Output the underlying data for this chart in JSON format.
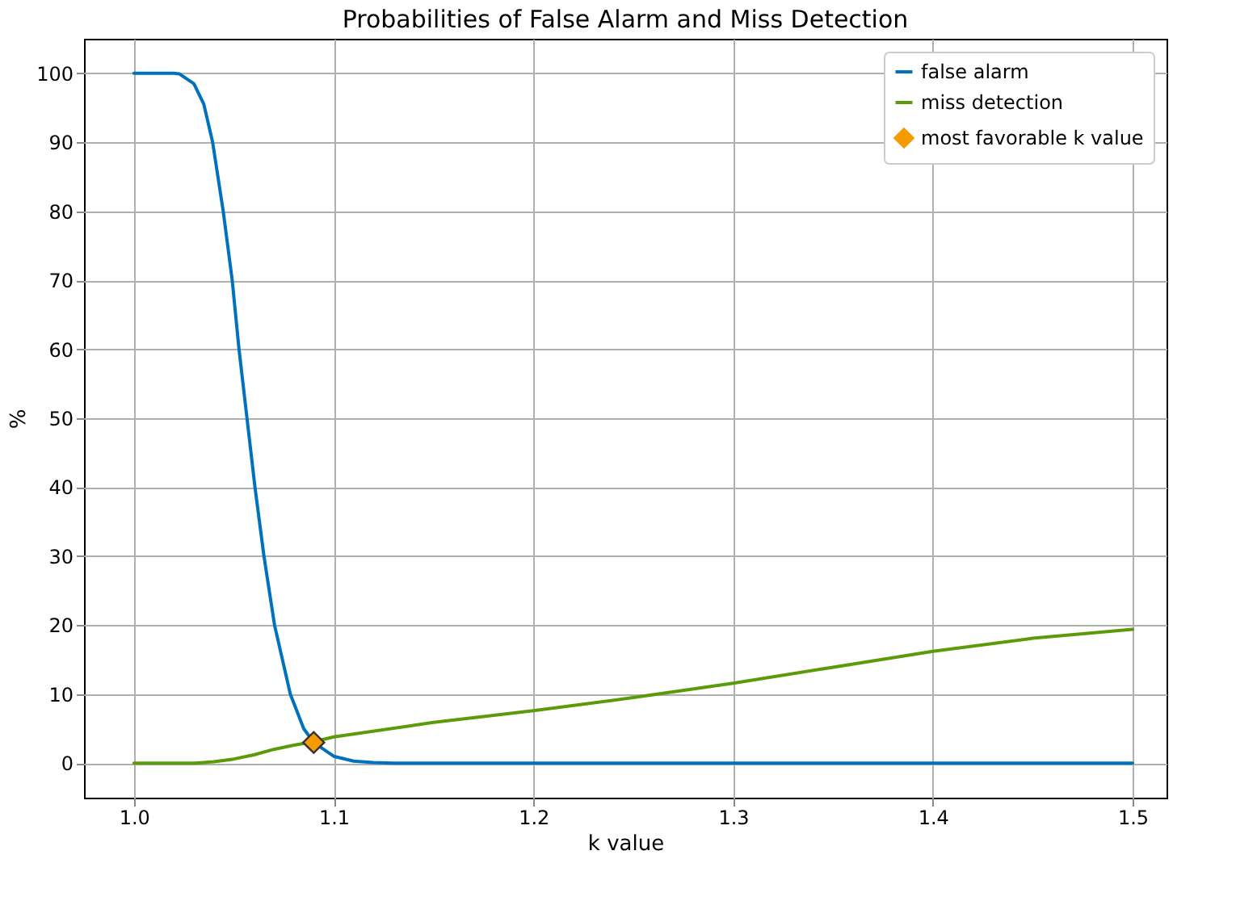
{
  "chart_data": {
    "type": "line",
    "title": "Probabilities of False Alarm and Miss Detection",
    "xlabel": "k value",
    "ylabel": "%",
    "xlim": [
      0.975,
      1.517
    ],
    "ylim": [
      -5,
      105
    ],
    "xticks": [
      {
        "value": 1.0,
        "label": "1.0"
      },
      1.1,
      1.2,
      1.3,
      1.4,
      1.5
    ],
    "yticks": [
      0,
      10,
      20,
      30,
      40,
      50,
      60,
      70,
      80,
      90,
      100
    ],
    "grid": true,
    "legend": "top right",
    "line_style": "solid",
    "series": [
      {
        "name": "false alarm",
        "color": "#0072bd",
        "x": [
          1.0,
          1.02,
          1.0228,
          1.03,
          1.035,
          1.0394,
          1.0447,
          1.0492,
          1.0526,
          1.0566,
          1.0606,
          1.0651,
          1.0704,
          1.0783,
          1.085,
          1.09,
          1.1,
          1.11,
          1.12,
          1.13,
          1.2,
          1.3,
          1.4,
          1.5
        ],
        "values": [
          100,
          100,
          99.9,
          98.5,
          95.5,
          90,
          80,
          70,
          60,
          50,
          40,
          30,
          20,
          10,
          5,
          3,
          1,
          0.3,
          0.1,
          0,
          0,
          0,
          0,
          0
        ]
      },
      {
        "name": "miss detection",
        "color": "#5b9a08",
        "x": [
          1.0,
          1.03,
          1.04,
          1.05,
          1.06,
          1.07,
          1.08,
          1.09,
          1.1,
          1.15,
          1.2,
          1.25,
          1.3,
          1.35,
          1.4,
          1.45,
          1.5
        ],
        "values": [
          0,
          0,
          0.2,
          0.6,
          1.2,
          2.0,
          2.6,
          3.1,
          3.8,
          5.9,
          7.6,
          9.5,
          11.6,
          13.9,
          16.2,
          18.1,
          19.4
        ]
      },
      {
        "name": "most favorable k value",
        "type": "scatter",
        "marker": "diamond",
        "color": "#f59b00",
        "x": [
          1.09
        ],
        "values": [
          3
        ]
      }
    ]
  }
}
